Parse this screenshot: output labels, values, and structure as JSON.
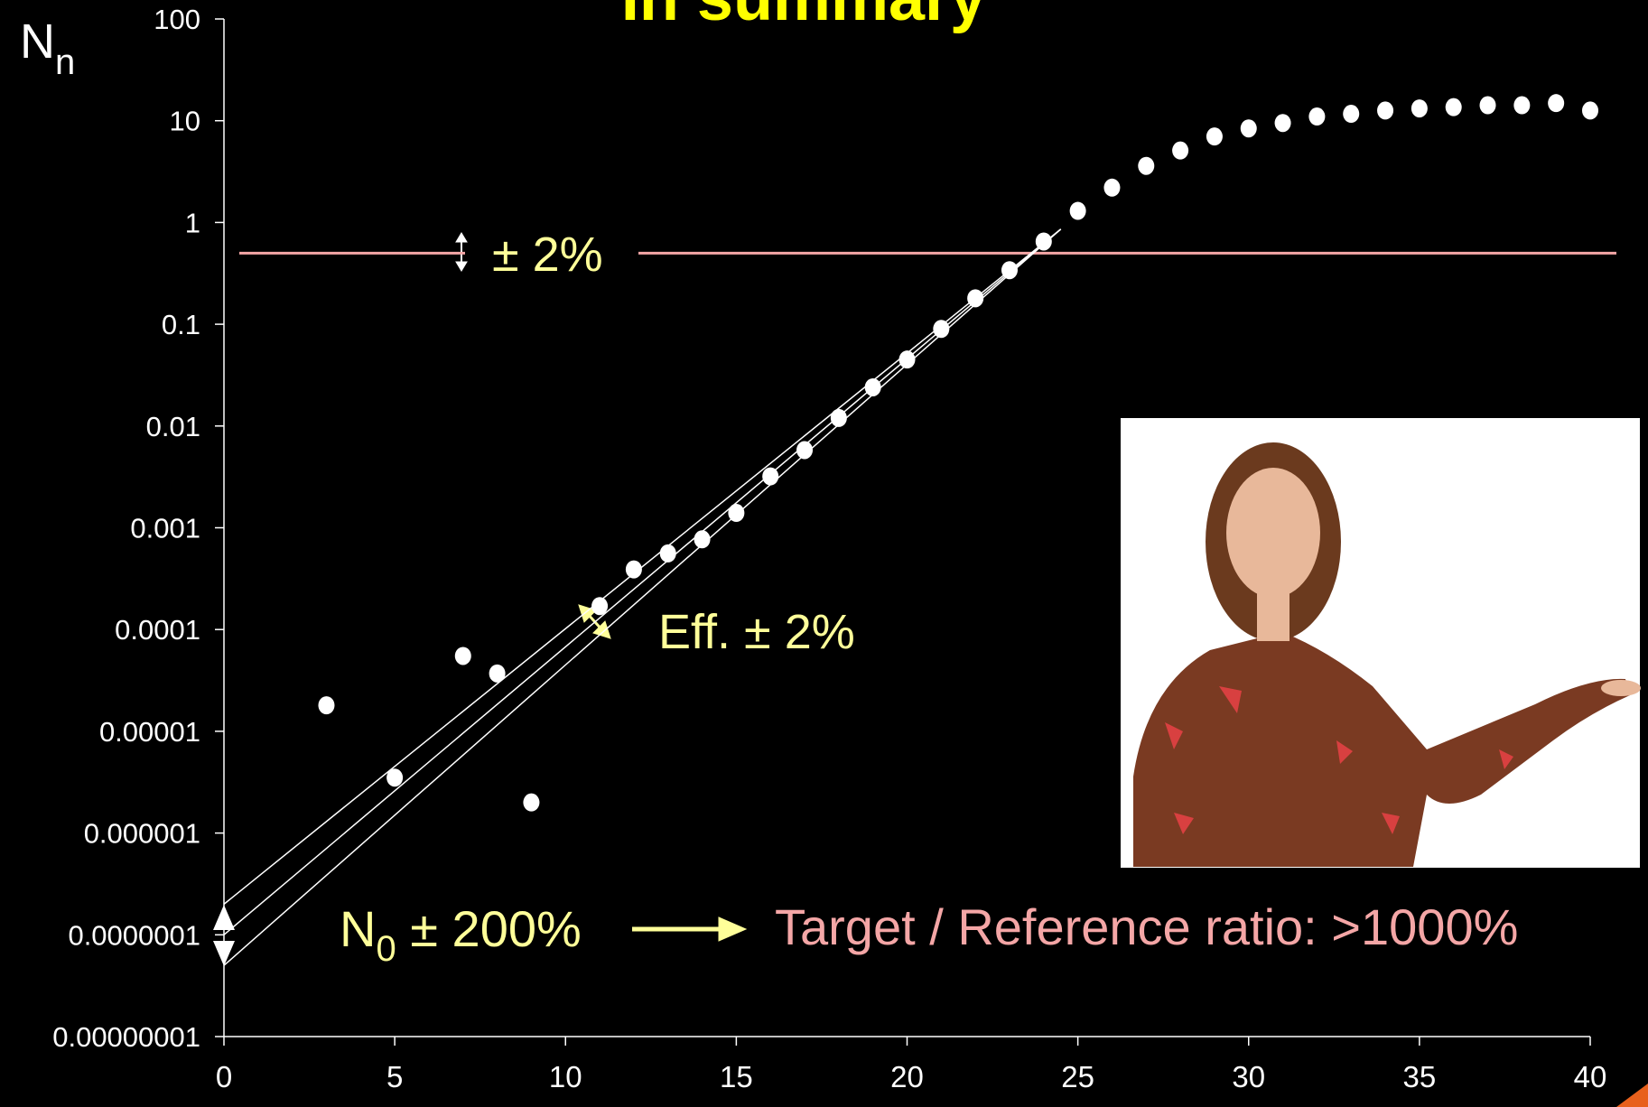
{
  "chart_data": {
    "type": "scatter",
    "title": "In summary",
    "y_label": "N",
    "y_label_sub": "n",
    "log_y": true,
    "color": "#ffffff",
    "x": [
      3,
      5,
      7,
      8,
      9,
      11,
      12,
      13,
      14,
      15,
      16,
      17,
      18,
      19,
      20,
      21,
      22,
      23,
      24,
      25,
      26,
      27,
      28,
      29,
      30,
      31,
      32,
      33,
      34,
      35,
      36,
      37,
      38,
      39,
      40
    ],
    "values": [
      1.8e-05,
      3.5e-06,
      5.5e-05,
      3.7e-05,
      2e-06,
      0.00017,
      0.00039,
      0.00056,
      0.00077,
      0.0014,
      0.0032,
      0.0058,
      0.012,
      0.024,
      0.045,
      0.09,
      0.18,
      0.34,
      0.65,
      1.3,
      2.2,
      3.6,
      5.1,
      7,
      8.4,
      9.5,
      11,
      11.7,
      12.6,
      13.2,
      13.6,
      14.2,
      14.2,
      14.9,
      12.6
    ],
    "xlim": [
      0,
      40
    ],
    "ylim": [
      1e-08,
      100
    ],
    "xticks": [
      0,
      5,
      10,
      15,
      20,
      25,
      30,
      35,
      40
    ],
    "yticks": [
      {
        "value": 1e-08,
        "label": "0.00000001"
      },
      {
        "value": 1e-07,
        "label": "0.0000001"
      },
      1e-06,
      1e-05,
      0.0001,
      0.001,
      0.01,
      0.1,
      1,
      10,
      100
    ],
    "threshold": {
      "value": 0.5,
      "color": "#f4a6a6"
    },
    "fit_lines": {
      "color": "#ffffff",
      "x": [
        0,
        24.5
      ],
      "series": [
        {
          "values": [
            2e-07,
            0.86
          ]
        },
        {
          "values": [
            1e-07,
            0.86
          ]
        },
        {
          "values": [
            5e-08,
            0.86
          ]
        }
      ]
    },
    "annotations": {
      "threshold_note": "± 2%",
      "efficiency_note": "Eff. ± 2%",
      "n0_note": {
        "text": "N",
        "sub": "0",
        "rest": " ± 200%"
      },
      "ratio_note": "Target / Reference ratio: >1000%"
    }
  }
}
